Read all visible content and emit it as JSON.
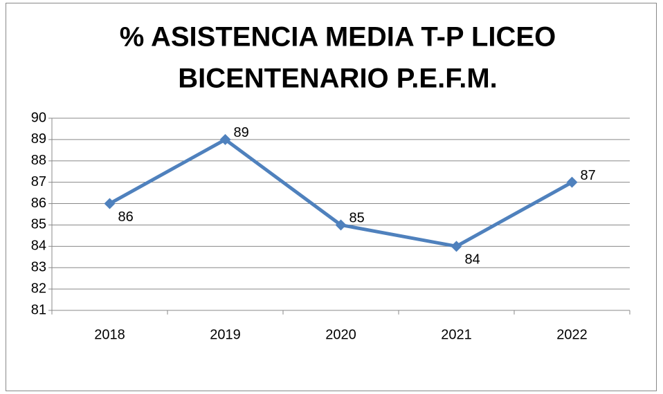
{
  "chart_data": {
    "type": "line",
    "title": [
      "% ASISTENCIA MEDIA T-P LICEO",
      "BICENTENARIO P.E.F.M."
    ],
    "categories": [
      "2018",
      "2019",
      "2020",
      "2021",
      "2022"
    ],
    "series": [
      {
        "name": "% Asistencia",
        "color": "#4f81bd",
        "values": [
          86,
          89,
          85,
          84,
          87
        ]
      }
    ],
    "ylim": [
      81,
      90
    ],
    "yticks": [
      81,
      82,
      83,
      84,
      85,
      86,
      87,
      88,
      89,
      90
    ],
    "grid": true
  }
}
